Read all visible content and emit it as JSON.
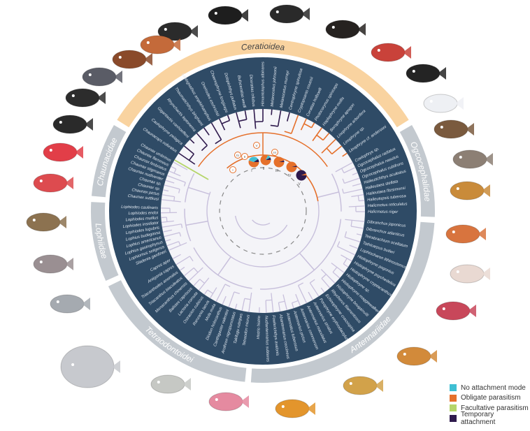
{
  "colors": {
    "disc": "#2f4b66",
    "ceratioidea_band": "#f9d3a0",
    "other_band": "#c3c9cf",
    "tree_default": "#c8c0dc",
    "tree_temporary": "#2f1a4d",
    "tree_obligate": "#e5702b",
    "tree_facultative": "#b5d56a",
    "label_text": "#dfe6ee"
  },
  "legend": [
    {
      "label": "No attachment mode",
      "color": "#3fbfd3"
    },
    {
      "label": "Obligate parasitism",
      "color": "#e5702b"
    },
    {
      "label": "Facultative parasitism",
      "color": "#b5d56a"
    },
    {
      "label": "Temporary attachment",
      "color": "#2f1a4d"
    }
  ],
  "clades": [
    {
      "name": "Ceratioidea",
      "start": 302,
      "end": 418,
      "highlight": true,
      "species": [
        "Chaunacops coloratus",
        "Caulophryne pelagica",
        "Gigantactis vanhoeffeni",
        "Rhynchactis leptonema",
        "Thaumatichthys binghami",
        "Lasiognathus amphirhamphus",
        "Oneirodes eschrichtii",
        "Chaenophryne longiceps",
        "Dolopichthys pullatus",
        "Bufoceratias wedli",
        "Diceratias trilobus",
        "Himantolophus albinares",
        "Melanocetus johnsonii",
        "Melanocetus murrayi",
        "Centrophryne spinulosa",
        "Cryptopsaras couesii",
        "Ceratias holboelli",
        "Photocorynus spiniceps",
        "Haplophryne mollis",
        "Borophryne apogon",
        "Linophryne arborifera",
        "Linophryne sp.",
        "Linophryne cf. andersoni"
      ]
    },
    {
      "name": "Ogcocephalidae",
      "start": 60,
      "end": 92,
      "species": [
        "Coelophrys sp.",
        "Ogcocephalus radiatus",
        "Ogcocephalus nasutus",
        "Ogcocephalus cubifrons",
        "Halieutichthys aculeatus",
        "Halieutaea stellata",
        "Halieutaea fitzsimonsi",
        "Halieutopsis tuberosa",
        "Halicmetus reticulatus",
        "Halicmetus niger"
      ]
    },
    {
      "name": "Antennariidae",
      "start": 94,
      "end": 184,
      "species": [
        "Dibranchus japonicus",
        "Dibranchus atlanticus",
        "Tetrabrachium ocellatum",
        "Tathicarpus butleri",
        "Lophiocharon lithinostomus",
        "Histiophryne pogonius",
        "Histiophryne psychedelica",
        "Histiophryne cryptacanthus",
        "Histiophryne sp.",
        "Histiophryne maggiewalker",
        "Histiophryne bougainvilli",
        "Rhycherus filamentosus",
        "Echinophryne crassispina",
        "Porophryne erythrodactylus",
        "Antennarius striatus",
        "Antennarius maculatus",
        "Antennarius commerson",
        "Antennarius pictus",
        "Antennatus tuberosus",
        "Abantennarius coccineus",
        "Fowlerichthys avalonis",
        "Nudiantennarius subteres",
        "Histrio histrio"
      ]
    },
    {
      "name": "Tetraodontoidei",
      "start": 186,
      "end": 244,
      "species": [
        "Tetraodon miurus",
        "Takifugu rubripes",
        "Arothron nigropunctatus",
        "Canthigaster valentini",
        "Diodon holocanthus",
        "Mola mola",
        "Ranzania laevis",
        "Ostracion cubicus",
        "Lactoria cornuta",
        "Balistes capriscus",
        "Monacanthus chinensis",
        "Triacanthus biaculeatus",
        "Triacanthodes anomalus",
        "Antigonia capros",
        "Capros aper"
      ]
    },
    {
      "name": "Lophiidae",
      "start": 246,
      "end": 273,
      "species": [
        "Sladenia gardineri",
        "Lophiomus setigerus",
        "Lophius gastrophysus",
        "Lophius americanus",
        "Lophius budegassa",
        "Lophiodes lugubris",
        "Lophiodes insidiator",
        "Lophiodes mutilus",
        "Lophiodes endoi",
        "Lophiodes caulinaris"
      ]
    },
    {
      "name": "Chaunacidae",
      "start": 275,
      "end": 300,
      "species": [
        "Chaunax suttkusi",
        "Chaunax pictus",
        "Chaunax sp.",
        "Chaunax sp.",
        "Chaunax nudiventer",
        "Chaunax stigmaeus",
        "Chaunax fimbriatus",
        "Chaunax flammeus",
        "Chaunax umbrinus"
      ]
    }
  ],
  "nodes": [
    "V",
    "IV",
    "II",
    "III",
    "I"
  ],
  "pies": [
    {
      "label": "I",
      "slices": [
        {
          "mode": "Obligate parasitism",
          "value": 0.55
        },
        {
          "mode": "No attachment mode",
          "value": 0.35
        },
        {
          "mode": "Temporary attachment",
          "value": 0.1
        }
      ]
    },
    {
      "label": "II",
      "slices": [
        {
          "mode": "Obligate parasitism",
          "value": 0.82
        },
        {
          "mode": "No attachment mode",
          "value": 0.1
        },
        {
          "mode": "Temporary attachment",
          "value": 0.08
        }
      ]
    },
    {
      "label": "III",
      "slices": [
        {
          "mode": "Obligate parasitism",
          "value": 0.95
        },
        {
          "mode": "Temporary attachment",
          "value": 0.05
        }
      ]
    },
    {
      "label": "IV",
      "slices": [
        {
          "mode": "Obligate parasitism",
          "value": 0.96
        },
        {
          "mode": "Temporary attachment",
          "value": 0.04
        }
      ]
    },
    {
      "label": "V",
      "slices": [
        {
          "mode": "Temporary attachment",
          "value": 0.94
        },
        {
          "mode": "Obligate parasitism",
          "value": 0.06
        }
      ]
    }
  ]
}
